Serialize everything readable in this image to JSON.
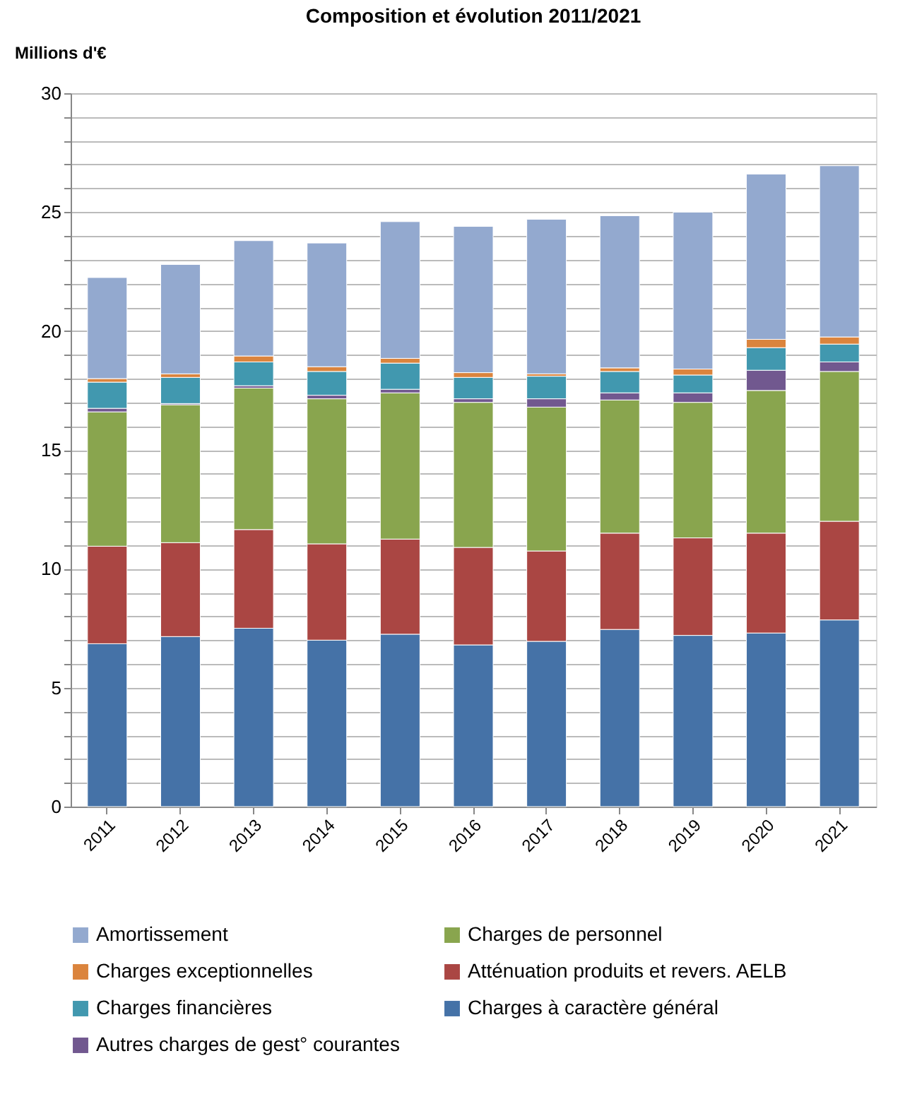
{
  "chart_data": {
    "type": "bar",
    "stacked": true,
    "title": "Composition et évolution 2011/2021",
    "ylabel": "Millions d'€",
    "categories": [
      "2011",
      "2012",
      "2013",
      "2014",
      "2015",
      "2016",
      "2017",
      "2018",
      "2019",
      "2020",
      "2021"
    ],
    "series": [
      {
        "name": "Charges à caractère général",
        "color": "#4572a7",
        "values": [
          6.85,
          7.15,
          7.5,
          7.0,
          7.25,
          6.8,
          6.95,
          7.45,
          7.2,
          7.3,
          7.85
        ]
      },
      {
        "name": "Atténuation produits et revers. AELB",
        "color": "#aa4643",
        "values": [
          4.1,
          3.95,
          4.15,
          4.05,
          4.0,
          4.1,
          3.8,
          4.05,
          4.1,
          4.2,
          4.15
        ]
      },
      {
        "name": "Charges de personnel",
        "color": "#89a54e",
        "values": [
          5.65,
          5.8,
          5.95,
          6.1,
          6.15,
          6.1,
          6.05,
          5.6,
          5.7,
          6.0,
          6.3
        ]
      },
      {
        "name": "Autres charges de gest° courantes",
        "color": "#71588f",
        "values": [
          0.15,
          0.05,
          0.1,
          0.15,
          0.15,
          0.15,
          0.35,
          0.3,
          0.4,
          0.85,
          0.4
        ]
      },
      {
        "name": "Charges financières",
        "color": "#4198af",
        "values": [
          1.1,
          1.1,
          1.0,
          1.0,
          1.1,
          0.9,
          0.95,
          0.9,
          0.75,
          0.95,
          0.75
        ]
      },
      {
        "name": "Charges exceptionnelles",
        "color": "#db843d",
        "values": [
          0.15,
          0.15,
          0.25,
          0.2,
          0.2,
          0.2,
          0.1,
          0.15,
          0.25,
          0.35,
          0.3
        ]
      },
      {
        "name": "Amortissement",
        "color": "#93a9cf",
        "values": [
          4.25,
          4.6,
          4.85,
          5.2,
          5.75,
          6.15,
          6.5,
          6.4,
          6.6,
          6.95,
          7.2
        ]
      }
    ],
    "ylim": [
      0,
      30
    ],
    "yticks": [
      0,
      {
        "value": 1,
        "label": null
      },
      {
        "value": 2,
        "label": null
      },
      {
        "value": 3,
        "label": null
      },
      {
        "value": 4,
        "label": null
      },
      5,
      {
        "value": 6,
        "label": null
      },
      {
        "value": 7,
        "label": null
      },
      {
        "value": 8,
        "label": null
      },
      {
        "value": 9,
        "label": null
      },
      10,
      {
        "value": 11,
        "label": null
      },
      {
        "value": 12,
        "label": null
      },
      {
        "value": 13,
        "label": null
      },
      {
        "value": 14,
        "label": null
      },
      15,
      {
        "value": 16,
        "label": null
      },
      {
        "value": 17,
        "label": null
      },
      {
        "value": 18,
        "label": null
      },
      {
        "value": 19,
        "label": null
      },
      20,
      {
        "value": 21,
        "label": null
      },
      {
        "value": 22,
        "label": null
      },
      {
        "value": 23,
        "label": null
      },
      {
        "value": 24,
        "label": null
      },
      25,
      {
        "value": 26,
        "label": null
      },
      {
        "value": 27,
        "label": null
      },
      {
        "value": 28,
        "label": null
      },
      {
        "value": 29,
        "label": null
      },
      30
    ],
    "grid": "y",
    "legend": "bottom"
  }
}
